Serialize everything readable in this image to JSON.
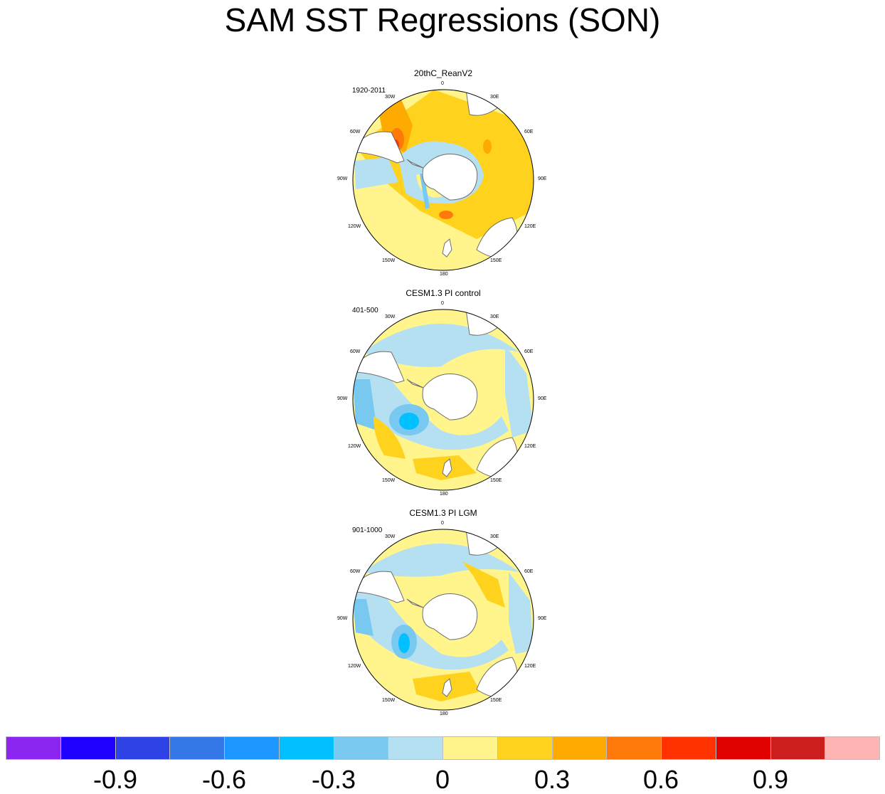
{
  "title": "SAM SST Regressions (SON)",
  "panels": [
    {
      "name": "20thC_ReanV2",
      "period": "1920-2011",
      "variant": "rean"
    },
    {
      "name": "CESM1.3 PI control",
      "period": "401-500",
      "variant": "pi"
    },
    {
      "name": "CESM1.3 PI LGM",
      "period": "901-1000",
      "variant": "lgm"
    }
  ],
  "longitude_labels": [
    "0",
    "30E",
    "60E",
    "90E",
    "120E",
    "150E",
    "180",
    "150W",
    "120W",
    "90W",
    "60W",
    "30W"
  ],
  "colorbar": {
    "colors": [
      "#8b25ef",
      "#1e00ff",
      "#2f42e6",
      "#3477e6",
      "#1e96ff",
      "#00c0ff",
      "#78c8f0",
      "#b4e0f2",
      "#fff58c",
      "#ffd21e",
      "#ffaa00",
      "#ff780a",
      "#ff3200",
      "#e10000",
      "#cd1e1e",
      "#ffb4b4"
    ],
    "labels": [
      "-0.9",
      "-0.6",
      "-0.3",
      "0",
      "0.3",
      "0.6",
      "0.9"
    ]
  },
  "colors": {
    "land": "#ffffff",
    "coast": "#6e6e6e",
    "light_blue": "#b4e0f2",
    "mid_blue": "#78c8f0",
    "cyan": "#00c0ff",
    "yellow": "#fff58c",
    "gold": "#ffd21e",
    "orange": "#ffaa00",
    "dark_orange": "#ff780a",
    "red": "#ff3200"
  }
}
